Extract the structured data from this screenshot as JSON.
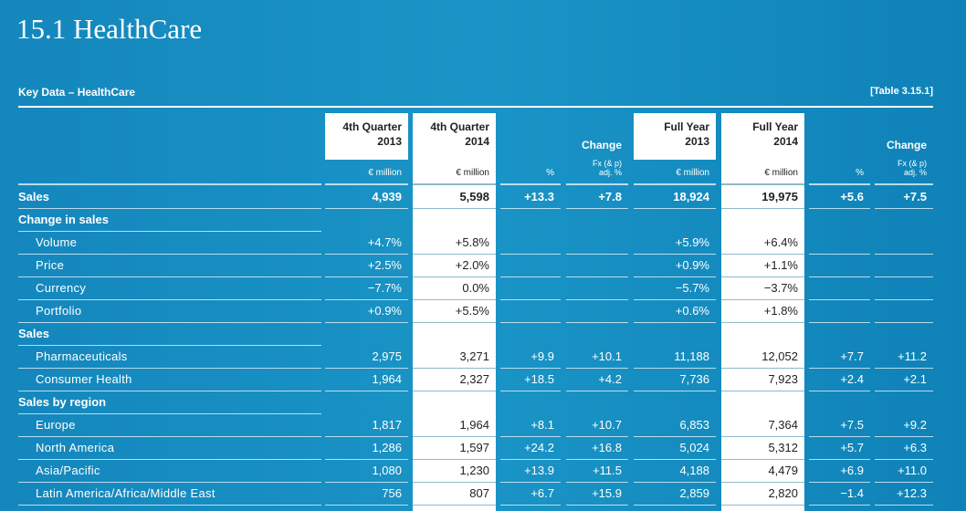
{
  "header": {
    "title": "15.1 HealthCare",
    "table_title": "Key Data – HealthCare",
    "table_ref": "[Table 3.15.1]"
  },
  "table": {
    "column_headers": [
      [
        "4th Quarter",
        "2013"
      ],
      [
        "4th Quarter",
        "2014"
      ],
      [
        "Change"
      ],
      [
        "Full Year",
        "2013"
      ],
      [
        "Full Year",
        "2014"
      ],
      [
        "Change"
      ]
    ],
    "units": [
      [
        "€ million"
      ],
      [
        "€ million"
      ],
      [
        "%"
      ],
      [
        "Fx (& p)",
        "adj. %"
      ],
      [
        "€ million"
      ],
      [
        "€ million"
      ],
      [
        "%"
      ],
      [
        "Fx (& p)",
        "adj. %"
      ]
    ],
    "rows": [
      {
        "label": "Sales",
        "bold": true,
        "values": [
          "4,939",
          "5,598",
          "+13.3",
          "+7.8",
          "18,924",
          "19,975",
          "+5.6",
          "+7.5"
        ]
      },
      {
        "label": "Change in sales",
        "bold": true
      },
      {
        "label": "Volume",
        "indent": true,
        "values": [
          "+4.7%",
          "+5.8%",
          null,
          null,
          "+5.9%",
          "+6.4%",
          null,
          null
        ]
      },
      {
        "label": "Price",
        "indent": true,
        "values": [
          "+2.5%",
          "+2.0%",
          null,
          null,
          "+0.9%",
          "+1.1%",
          null,
          null
        ]
      },
      {
        "label": "Currency",
        "indent": true,
        "values": [
          "−7.7%",
          "0.0%",
          null,
          null,
          "−5.7%",
          "−3.7%",
          null,
          null
        ]
      },
      {
        "label": "Portfolio",
        "indent": true,
        "values": [
          "+0.9%",
          "+5.5%",
          null,
          null,
          "+0.6%",
          "+1.8%",
          null,
          null
        ]
      },
      {
        "label": "Sales",
        "bold": true
      },
      {
        "label": "Pharmaceuticals",
        "indent": true,
        "values": [
          "2,975",
          "3,271",
          "+9.9",
          "+10.1",
          "11,188",
          "12,052",
          "+7.7",
          "+11.2"
        ]
      },
      {
        "label": "Consumer Health",
        "indent": true,
        "values": [
          "1,964",
          "2,327",
          "+18.5",
          "+4.2",
          "7,736",
          "7,923",
          "+2.4",
          "+2.1"
        ]
      },
      {
        "label": "Sales by region",
        "bold": true
      },
      {
        "label": "Europe",
        "indent": true,
        "values": [
          "1,817",
          "1,964",
          "+8.1",
          "+10.7",
          "6,853",
          "7,364",
          "+7.5",
          "+9.2"
        ]
      },
      {
        "label": "North America",
        "indent": true,
        "values": [
          "1,286",
          "1,597",
          "+24.2",
          "+16.8",
          "5,024",
          "5,312",
          "+5.7",
          "+6.3"
        ]
      },
      {
        "label": "Asia/Pacific",
        "indent": true,
        "values": [
          "1,080",
          "1,230",
          "+13.9",
          "+11.5",
          "4,188",
          "4,479",
          "+6.9",
          "+11.0"
        ]
      },
      {
        "label": "Latin America/Africa/Middle East",
        "indent": true,
        "values": [
          "756",
          "807",
          "+6.7",
          "+15.9",
          "2,859",
          "2,820",
          "−1.4",
          "+12.3"
        ]
      }
    ]
  }
}
